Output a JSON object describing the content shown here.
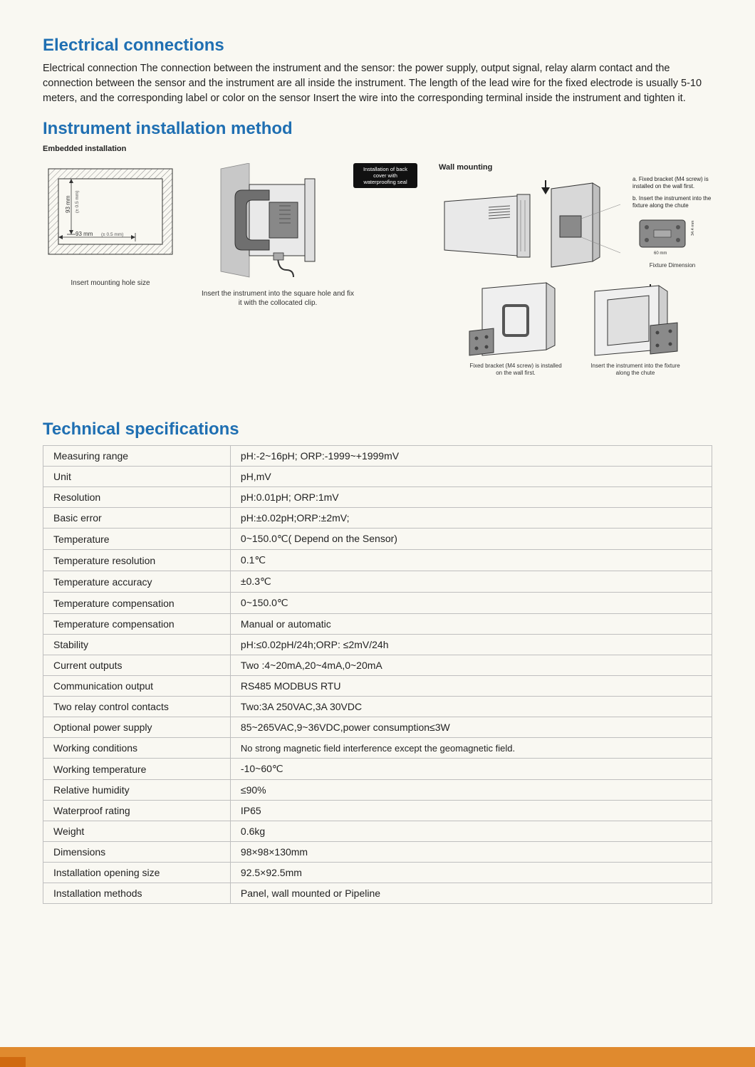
{
  "theme": {
    "heading_color": "#1f6fb2",
    "background_color": "#f9f8f2",
    "accent_bar_color": "#e08a2e",
    "accent_bar_inner_color": "#d06a10",
    "table_border_color": "#bfbfbf",
    "heading_fontsize": 24,
    "body_fontsize": 14.5,
    "table_fontsize": 14
  },
  "section1": {
    "heading": "Electrical connections",
    "paragraph": "Electrical connection The connection between the instrument and the sensor: the power supply, output signal, relay alarm contact and the connection between the sensor and the instrument are all inside the instrument. The length of the lead wire for the fixed electrode is usually 5-10 meters, and the corresponding label or color on the sensor Insert the wire into the corresponding terminal inside the instrument and tighten it."
  },
  "section2": {
    "heading": "Instrument installation method",
    "embedded_label": "Embedded installation",
    "wall_label": "Wall mounting",
    "panel_cutout": {
      "width_label": "93 mm",
      "width_tol": "(± 0.5 mm)",
      "height_label": "93 mm",
      "height_tol": "(± 0.5 mm)",
      "caption": "Insert mounting hole size",
      "colors": {
        "line": "#333333",
        "hatch": "#888888"
      }
    },
    "side_view": {
      "badge_line1": "Installation of back",
      "badge_line2": "cover with",
      "badge_line3": "waterproofing seal",
      "caption": "Insert the instrument into the square hole and fix it with the collocated clip.",
      "colors": {
        "body": "#e9e9e9",
        "dark": "#6f6f6f",
        "outline": "#333333",
        "back_panel": "#c8c8c8"
      }
    },
    "wall": {
      "arrow_color": "#222222",
      "note_a": "a. Fixed bracket (M4 screw) is installed on the wall first.",
      "note_b": "b. Insert the instrument into the fixture along the chute",
      "fixture_dim_label": "Fixture Dimension",
      "fixture_w": "60 mm",
      "fixture_h": "34.4 mm",
      "bottom_left_caption": "Fixed bracket (M4 screw) is installed on the wall first.",
      "bottom_right_caption": "Insert the instrument into the fixture along the chute",
      "colors": {
        "instrument_body": "#e9e9e9",
        "bracket": "#8a8a8a",
        "panel": "#d8d8d8",
        "outline": "#333333"
      }
    }
  },
  "section3": {
    "heading": "Technical specifications",
    "rows": [
      {
        "label": "Measuring range",
        "value": "pH:-2~16pH; ORP:-1999~+1999mV"
      },
      {
        "label": "Unit",
        "value": "pH,mV"
      },
      {
        "label": "Resolution",
        "value": "pH:0.01pH; ORP:1mV"
      },
      {
        "label": "Basic error",
        "value": "pH:±0.02pH;ORP:±2mV;"
      },
      {
        "label": "Temperature",
        "value": "0~150.0℃( Depend on the Sensor)"
      },
      {
        "label": "Temperature resolution",
        "value": "0.1℃"
      },
      {
        "label": "Temperature accuracy",
        "value": "±0.3℃"
      },
      {
        "label": "Temperature compensation",
        "value": "0~150.0℃"
      },
      {
        "label": "Temperature compensation",
        "value": "Manual or automatic"
      },
      {
        "label": "Stability",
        "value": "pH:≤0.02pH/24h;ORP: ≤2mV/24h"
      },
      {
        "label": "Current outputs",
        "value": "Two :4~20mA,20~4mA,0~20mA"
      },
      {
        "label": "Communication output",
        "value": "RS485 MODBUS RTU"
      },
      {
        "label": "Two relay control contacts",
        "value": "Two:3A 250VAC,3A 30VDC"
      },
      {
        "label": "Optional power supply",
        "value": "85~265VAC,9~36VDC,power consumption≤3W"
      },
      {
        "label": "Working conditions",
        "value": "No strong magnetic field interference except the geomagnetic field."
      },
      {
        "label": "Working temperature",
        "value": "-10~60℃"
      },
      {
        "label": "Relative humidity",
        "value": "≤90%"
      },
      {
        "label": "Waterproof rating",
        "value": "IP65"
      },
      {
        "label": "Weight",
        "value": "0.6kg"
      },
      {
        "label": "Dimensions",
        "value": "98×98×130mm"
      },
      {
        "label": "Installation opening size",
        "value": "92.5×92.5mm"
      },
      {
        "label": "Installation methods",
        "value": "Panel, wall mounted or Pipeline"
      }
    ]
  }
}
